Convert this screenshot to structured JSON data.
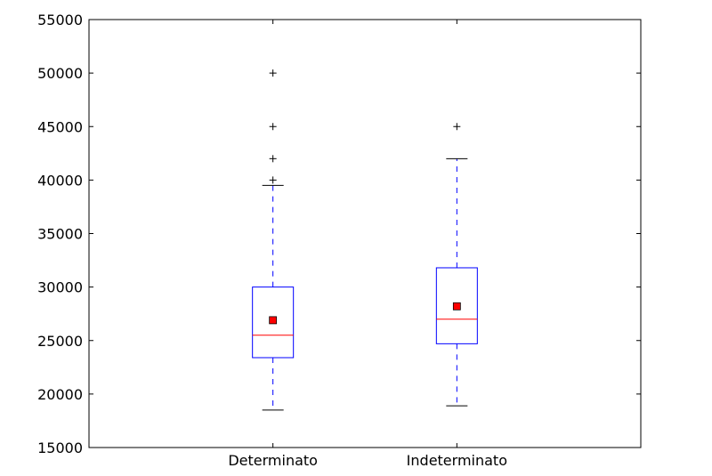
{
  "chart_data": {
    "type": "box",
    "title": "",
    "xlabel": "",
    "ylabel": "",
    "ylim": [
      15000,
      55000
    ],
    "yticks": [
      15000,
      20000,
      25000,
      30000,
      35000,
      40000,
      45000,
      50000,
      55000
    ],
    "ytick_labels": [
      "15000",
      "20000",
      "25000",
      "30000",
      "35000",
      "40000",
      "45000",
      "50000",
      "55000"
    ],
    "grid": false,
    "categories": [
      "Determinato",
      "Indeterminato"
    ],
    "boxes": [
      {
        "name": "Determinato",
        "whisker_low": 18500,
        "q1": 23400,
        "median": 25500,
        "q3": 30000,
        "whisker_high": 39500,
        "mean": 26900,
        "outliers": [
          40000,
          42000,
          45000,
          50000
        ]
      },
      {
        "name": "Indeterminato",
        "whisker_low": 18900,
        "q1": 24700,
        "median": 27000,
        "q3": 31800,
        "whisker_high": 42000,
        "mean": 28200,
        "outliers": [
          45000
        ]
      }
    ],
    "colors": {
      "box": "#0000ff",
      "median": "#ff0000",
      "mean": "#ff0000",
      "cap": "#000000",
      "outlier": "#000000"
    }
  }
}
